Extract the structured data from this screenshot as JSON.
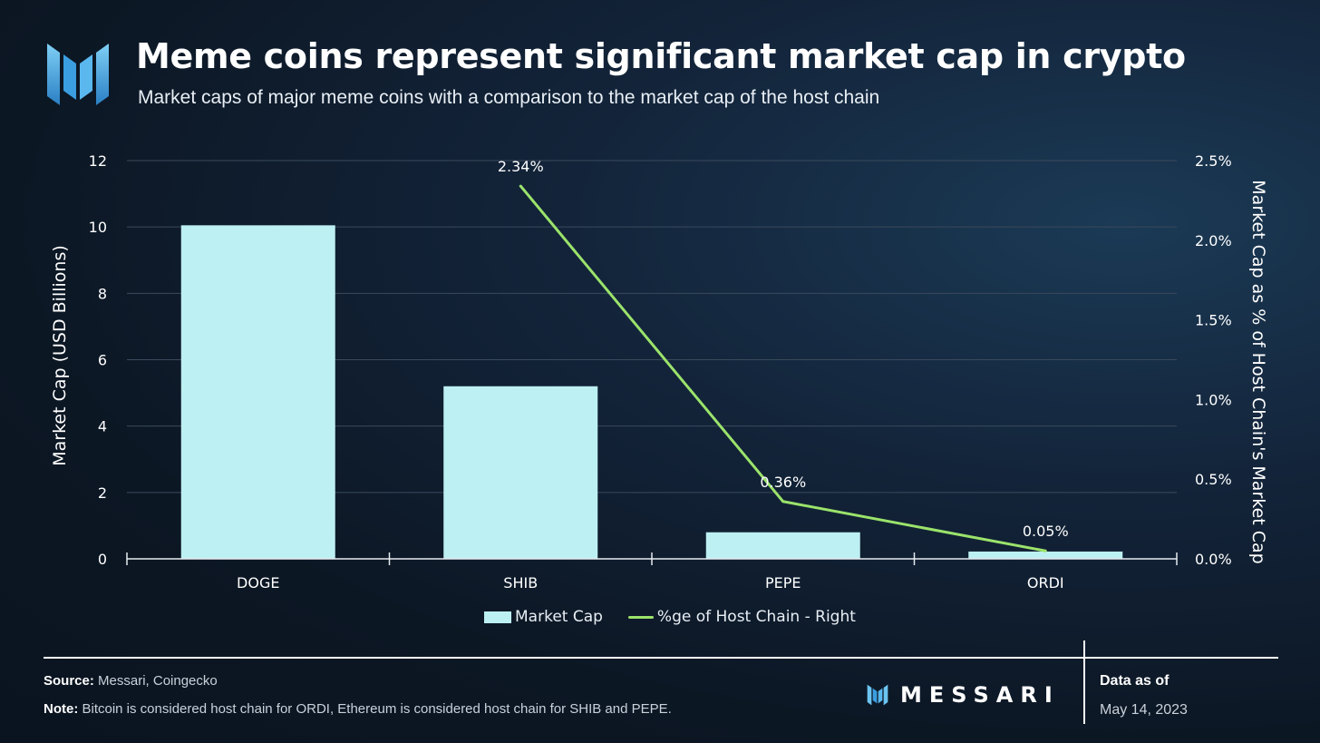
{
  "header": {
    "title": "Meme coins represent significant market cap in crypto",
    "subtitle": "Market caps of major meme coins with a comparison to the market cap of the host chain",
    "logo_icon": "messari-logo-icon"
  },
  "chart_data": {
    "type": "bar",
    "categories": [
      "DOGE",
      "SHIB",
      "PEPE",
      "ORDI"
    ],
    "series": [
      {
        "name": "Market Cap",
        "kind": "bar",
        "axis": "left",
        "color": "#bdf0f2",
        "values": [
          10.05,
          5.2,
          0.8,
          0.22
        ]
      },
      {
        "name": "%ge of Host Chain - Right",
        "kind": "line",
        "axis": "right",
        "color": "#9be36b",
        "values": [
          null,
          2.34,
          0.36,
          0.05
        ]
      }
    ],
    "data_labels": [
      "2.34%",
      "0.36%",
      "0.05%"
    ],
    "ylabel": "Market Cap (USD Billions)",
    "y2label": "Market Cap as % of Host Chain's Market Cap",
    "ylim": [
      0,
      12
    ],
    "yticks": [
      0,
      2,
      4,
      6,
      8,
      10,
      12
    ],
    "y2lim": [
      0,
      2.5
    ],
    "y2ticks": [
      "0.0%",
      "0.5%",
      "1.0%",
      "1.5%",
      "2.0%",
      "2.5%"
    ],
    "y2tick_values": [
      0,
      0.5,
      1.0,
      1.5,
      2.0,
      2.5
    ],
    "grid": true,
    "legend_position": "bottom-center"
  },
  "footer": {
    "source_label": "Source:",
    "source_text": " Messari, Coingecko",
    "note_label": "Note:",
    "note_text": " Bitcoin is considered host chain for ORDI, Ethereum is considered host chain for SHIB and PEPE.",
    "brand": "MESSARI",
    "asof_label": "Data as of",
    "asof_date": "May 14, 2023"
  }
}
